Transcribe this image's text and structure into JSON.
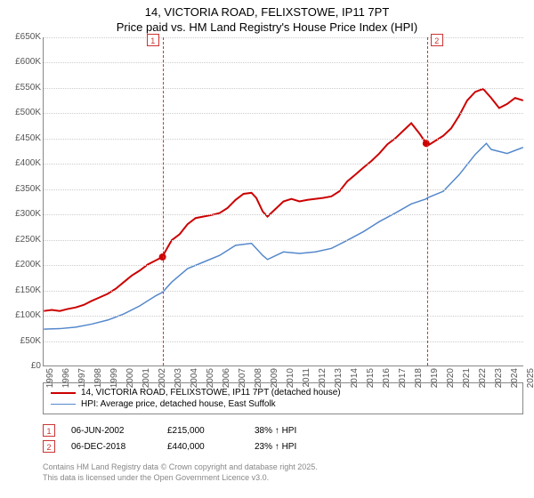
{
  "title_line1": "14, VICTORIA ROAD, FELIXSTOWE, IP11 7PT",
  "title_line2": "Price paid vs. HM Land Registry's House Price Index (HPI)",
  "chart": {
    "type": "line",
    "background_color": "#ffffff",
    "grid_color": "#cccccc",
    "axis_color": "#888888",
    "label_fontsize": 10,
    "title_fontsize": 13,
    "xlim": [
      1995,
      2025
    ],
    "ylim": [
      0,
      650000
    ],
    "ytick_step": 50000,
    "y_ticks": [
      "£0",
      "£50K",
      "£100K",
      "£150K",
      "£200K",
      "£250K",
      "£300K",
      "£350K",
      "£400K",
      "£450K",
      "£500K",
      "£550K",
      "£600K",
      "£650K"
    ],
    "x_ticks": [
      "1995",
      "1996",
      "1997",
      "1998",
      "1999",
      "2000",
      "2001",
      "2002",
      "2003",
      "2004",
      "2005",
      "2006",
      "2007",
      "2008",
      "2009",
      "2010",
      "2011",
      "2012",
      "2013",
      "2014",
      "2015",
      "2016",
      "2017",
      "2018",
      "2019",
      "2020",
      "2021",
      "2022",
      "2023",
      "2024",
      "2025"
    ],
    "series": [
      {
        "name": "property",
        "label": "14, VICTORIA ROAD, FELIXSTOWE, IP11 7PT (detached house)",
        "color": "#cc0000",
        "line_width": 2,
        "data": [
          [
            1995,
            108000
          ],
          [
            1995.5,
            110000
          ],
          [
            1996,
            108000
          ],
          [
            1996.5,
            112000
          ],
          [
            1997,
            115000
          ],
          [
            1997.5,
            120000
          ],
          [
            1998,
            128000
          ],
          [
            1998.5,
            135000
          ],
          [
            1999,
            142000
          ],
          [
            1999.5,
            152000
          ],
          [
            2000,
            165000
          ],
          [
            2000.5,
            178000
          ],
          [
            2001,
            188000
          ],
          [
            2001.5,
            200000
          ],
          [
            2002,
            208000
          ],
          [
            2002.43,
            215000
          ],
          [
            2002.5,
            220000
          ],
          [
            2003,
            248000
          ],
          [
            2003.5,
            260000
          ],
          [
            2004,
            280000
          ],
          [
            2004.5,
            292000
          ],
          [
            2005,
            295000
          ],
          [
            2005.5,
            298000
          ],
          [
            2006,
            302000
          ],
          [
            2006.5,
            312000
          ],
          [
            2007,
            328000
          ],
          [
            2007.5,
            340000
          ],
          [
            2008,
            342000
          ],
          [
            2008.3,
            332000
          ],
          [
            2008.7,
            305000
          ],
          [
            2009,
            295000
          ],
          [
            2009.5,
            310000
          ],
          [
            2010,
            325000
          ],
          [
            2010.5,
            330000
          ],
          [
            2011,
            325000
          ],
          [
            2011.5,
            328000
          ],
          [
            2012,
            330000
          ],
          [
            2012.5,
            332000
          ],
          [
            2013,
            335000
          ],
          [
            2013.5,
            345000
          ],
          [
            2014,
            365000
          ],
          [
            2014.5,
            378000
          ],
          [
            2015,
            392000
          ],
          [
            2015.5,
            405000
          ],
          [
            2016,
            420000
          ],
          [
            2016.5,
            438000
          ],
          [
            2017,
            450000
          ],
          [
            2017.5,
            465000
          ],
          [
            2018,
            480000
          ],
          [
            2018.5,
            460000
          ],
          [
            2018.93,
            440000
          ],
          [
            2019,
            435000
          ],
          [
            2019.5,
            445000
          ],
          [
            2020,
            455000
          ],
          [
            2020.5,
            470000
          ],
          [
            2021,
            495000
          ],
          [
            2021.5,
            525000
          ],
          [
            2022,
            542000
          ],
          [
            2022.5,
            548000
          ],
          [
            2023,
            530000
          ],
          [
            2023.5,
            510000
          ],
          [
            2024,
            518000
          ],
          [
            2024.5,
            530000
          ],
          [
            2025,
            525000
          ]
        ]
      },
      {
        "name": "hpi",
        "label": "HPI: Average price, detached house, East Suffolk",
        "color": "#5588cc",
        "line_width": 1.5,
        "data": [
          [
            1995,
            72000
          ],
          [
            1996,
            73000
          ],
          [
            1997,
            76000
          ],
          [
            1998,
            82000
          ],
          [
            1999,
            90000
          ],
          [
            2000,
            102000
          ],
          [
            2001,
            118000
          ],
          [
            2002,
            138000
          ],
          [
            2002.43,
            145000
          ],
          [
            2003,
            165000
          ],
          [
            2004,
            192000
          ],
          [
            2005,
            205000
          ],
          [
            2006,
            218000
          ],
          [
            2007,
            238000
          ],
          [
            2008,
            242000
          ],
          [
            2008.7,
            218000
          ],
          [
            2009,
            210000
          ],
          [
            2010,
            225000
          ],
          [
            2011,
            222000
          ],
          [
            2012,
            225000
          ],
          [
            2013,
            232000
          ],
          [
            2014,
            248000
          ],
          [
            2015,
            265000
          ],
          [
            2016,
            285000
          ],
          [
            2017,
            302000
          ],
          [
            2018,
            320000
          ],
          [
            2018.93,
            330000
          ],
          [
            2019,
            332000
          ],
          [
            2020,
            345000
          ],
          [
            2021,
            378000
          ],
          [
            2022,
            418000
          ],
          [
            2022.7,
            440000
          ],
          [
            2023,
            428000
          ],
          [
            2024,
            420000
          ],
          [
            2025,
            432000
          ]
        ]
      }
    ],
    "markers": [
      {
        "num": "1",
        "x": 2002.43,
        "box_side": "left"
      },
      {
        "num": "2",
        "x": 2018.93,
        "box_side": "right"
      }
    ],
    "sale_points": [
      {
        "x": 2002.43,
        "y": 215000
      },
      {
        "x": 2018.93,
        "y": 440000
      }
    ]
  },
  "legend": {
    "border_color": "#888888"
  },
  "sales": [
    {
      "num": "1",
      "date": "06-JUN-2002",
      "price": "£215,000",
      "hpi": "38% ↑ HPI"
    },
    {
      "num": "2",
      "date": "06-DEC-2018",
      "price": "£440,000",
      "hpi": "23% ↑ HPI"
    }
  ],
  "footer_line1": "Contains HM Land Registry data © Crown copyright and database right 2025.",
  "footer_line2": "This data is licensed under the Open Government Licence v3.0."
}
